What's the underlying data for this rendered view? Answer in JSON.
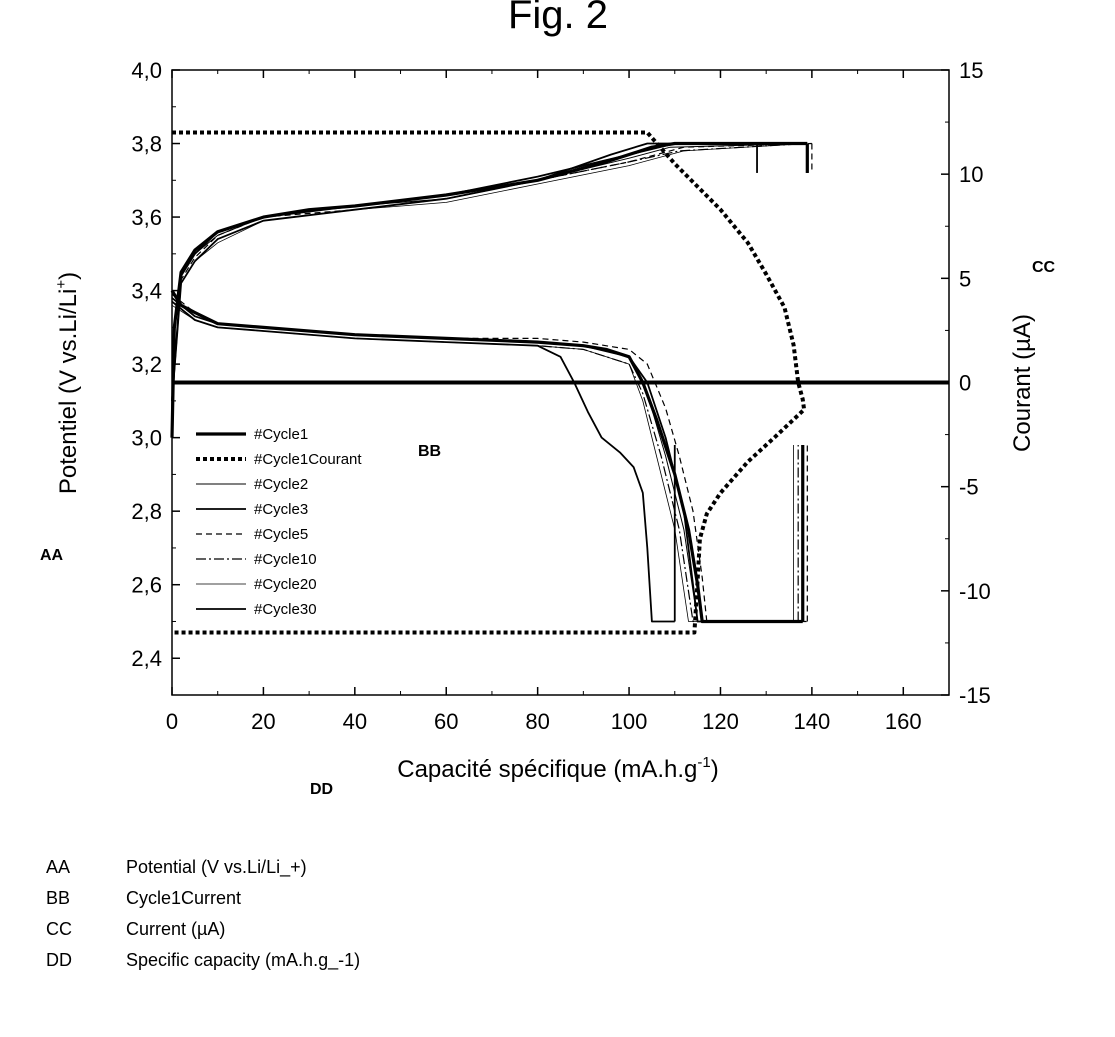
{
  "figure": {
    "title": "Fig. 2"
  },
  "annotations": {
    "aa": "AA",
    "bb": "BB",
    "cc": "CC",
    "dd": "DD"
  },
  "key": [
    {
      "code": "AA",
      "text": "Potential (V vs.Li/Li_+)"
    },
    {
      "code": "BB",
      "text": "Cycle1Current"
    },
    {
      "code": "CC",
      "text": "Current (µA)"
    },
    {
      "code": "DD",
      "text": "Specific capacity (mA.h.g_-1)"
    }
  ],
  "chart_data": {
    "type": "line",
    "title": "Fig. 2",
    "xlabel_main": "Capacité spécifique (mA.h.g",
    "xlabel_sup": "-1",
    "xlabel_end": ")",
    "ylabel_main": "Potentiel (V vs.Li/Li",
    "ylabel_sup": "+",
    "ylabel_end": ")",
    "y2label": "Courant (µA)",
    "xlim": [
      0,
      170
    ],
    "ylim": [
      2.3,
      4.0
    ],
    "y2lim": [
      -15,
      15
    ],
    "xticks": [
      "0",
      "20",
      "40",
      "60",
      "80",
      "100",
      "120",
      "140",
      "160"
    ],
    "yticks": [
      "2,4",
      "2,6",
      "2,8",
      "3,0",
      "3,2",
      "3,4",
      "3,6",
      "3,8",
      "4,0"
    ],
    "y2ticks": [
      "-15",
      "-10",
      "-5",
      "0",
      "5",
      "10",
      "15"
    ],
    "grid": false,
    "legend_position": "left",
    "series": [
      {
        "name": "#Cycle1",
        "axis": "left",
        "style": "thick",
        "charge": [
          [
            0,
            3.0
          ],
          [
            0.5,
            3.3
          ],
          [
            2,
            3.45
          ],
          [
            5,
            3.51
          ],
          [
            10,
            3.56
          ],
          [
            20,
            3.6
          ],
          [
            30,
            3.62
          ],
          [
            40,
            3.63
          ],
          [
            60,
            3.66
          ],
          [
            80,
            3.7
          ],
          [
            95,
            3.75
          ],
          [
            105,
            3.79
          ],
          [
            110,
            3.8
          ],
          [
            139,
            3.8
          ]
        ],
        "discharge": [
          [
            0,
            3.4
          ],
          [
            2,
            3.36
          ],
          [
            5,
            3.34
          ],
          [
            10,
            3.31
          ],
          [
            20,
            3.3
          ],
          [
            40,
            3.28
          ],
          [
            60,
            3.27
          ],
          [
            80,
            3.26
          ],
          [
            90,
            3.25
          ],
          [
            95,
            3.24
          ],
          [
            100,
            3.22
          ],
          [
            103,
            3.15
          ],
          [
            106,
            3.05
          ],
          [
            110,
            2.9
          ],
          [
            113,
            2.75
          ],
          [
            115,
            2.6
          ],
          [
            116,
            2.5
          ],
          [
            138,
            2.5
          ]
        ]
      },
      {
        "name": "#Cycle1Courant",
        "axis": "right",
        "style": "dotted",
        "points": [
          [
            0,
            12
          ],
          [
            104,
            12
          ],
          [
            110,
            10.5
          ],
          [
            120,
            8.3
          ],
          [
            126,
            6.7
          ],
          [
            130,
            5.2
          ],
          [
            134,
            3.6
          ],
          [
            136,
            1.8
          ],
          [
            137,
            0
          ],
          [
            138,
            -0.8
          ],
          [
            138.3,
            -1.3
          ],
          [
            132,
            -2.6
          ],
          [
            126,
            -3.8
          ],
          [
            120,
            -5.3
          ],
          [
            117,
            -6.3
          ],
          [
            115.5,
            -7.5
          ],
          [
            115,
            -9.5
          ],
          [
            114.3,
            -12
          ],
          [
            0,
            -12
          ]
        ]
      },
      {
        "name": "#Cycle2",
        "axis": "left",
        "style": "thin",
        "charge": [
          [
            0,
            3.1
          ],
          [
            2,
            3.44
          ],
          [
            5,
            3.5
          ],
          [
            10,
            3.55
          ],
          [
            20,
            3.6
          ],
          [
            40,
            3.63
          ],
          [
            60,
            3.65
          ],
          [
            80,
            3.7
          ],
          [
            100,
            3.76
          ],
          [
            109,
            3.79
          ],
          [
            139,
            3.8
          ]
        ],
        "discharge": [
          [
            0,
            3.38
          ],
          [
            5,
            3.33
          ],
          [
            10,
            3.31
          ],
          [
            20,
            3.3
          ],
          [
            40,
            3.28
          ],
          [
            60,
            3.27
          ],
          [
            80,
            3.26
          ],
          [
            90,
            3.25
          ],
          [
            100,
            3.22
          ],
          [
            104,
            3.12
          ],
          [
            108,
            2.95
          ],
          [
            112,
            2.75
          ],
          [
            115,
            2.5
          ],
          [
            138,
            2.5
          ]
        ]
      },
      {
        "name": "#Cycle3",
        "axis": "left",
        "style": "solid",
        "charge": [
          [
            0,
            3.1
          ],
          [
            2,
            3.44
          ],
          [
            5,
            3.5
          ],
          [
            10,
            3.56
          ],
          [
            20,
            3.6
          ],
          [
            40,
            3.63
          ],
          [
            60,
            3.66
          ],
          [
            80,
            3.71
          ],
          [
            100,
            3.77
          ],
          [
            110,
            3.8
          ],
          [
            139,
            3.8
          ]
        ],
        "discharge": [
          [
            0,
            3.38
          ],
          [
            5,
            3.33
          ],
          [
            10,
            3.31
          ],
          [
            20,
            3.3
          ],
          [
            40,
            3.28
          ],
          [
            60,
            3.27
          ],
          [
            80,
            3.26
          ],
          [
            90,
            3.25
          ],
          [
            100,
            3.22
          ],
          [
            104,
            3.15
          ],
          [
            108,
            3.0
          ],
          [
            112,
            2.8
          ],
          [
            115,
            2.5
          ],
          [
            138,
            2.5
          ]
        ]
      },
      {
        "name": "#Cycle5",
        "axis": "left",
        "style": "dashed",
        "charge": [
          [
            0,
            3.1
          ],
          [
            2,
            3.43
          ],
          [
            5,
            3.49
          ],
          [
            10,
            3.55
          ],
          [
            20,
            3.6
          ],
          [
            40,
            3.62
          ],
          [
            60,
            3.65
          ],
          [
            80,
            3.7
          ],
          [
            100,
            3.75
          ],
          [
            112,
            3.79
          ],
          [
            140,
            3.8
          ]
        ],
        "discharge": [
          [
            0,
            3.39
          ],
          [
            5,
            3.34
          ],
          [
            10,
            3.31
          ],
          [
            20,
            3.3
          ],
          [
            40,
            3.28
          ],
          [
            60,
            3.27
          ],
          [
            80,
            3.27
          ],
          [
            90,
            3.26
          ],
          [
            100,
            3.24
          ],
          [
            104,
            3.2
          ],
          [
            108,
            3.08
          ],
          [
            111,
            2.95
          ],
          [
            114,
            2.8
          ],
          [
            116,
            2.62
          ],
          [
            117,
            2.5
          ],
          [
            139,
            2.5
          ]
        ]
      },
      {
        "name": "#Cycle10",
        "axis": "left",
        "style": "dashdot",
        "charge": [
          [
            0,
            3.1
          ],
          [
            2,
            3.42
          ],
          [
            5,
            3.48
          ],
          [
            10,
            3.54
          ],
          [
            20,
            3.59
          ],
          [
            40,
            3.62
          ],
          [
            60,
            3.65
          ],
          [
            80,
            3.7
          ],
          [
            100,
            3.75
          ],
          [
            111,
            3.78
          ],
          [
            139,
            3.8
          ]
        ],
        "discharge": [
          [
            0,
            3.37
          ],
          [
            5,
            3.32
          ],
          [
            10,
            3.3
          ],
          [
            20,
            3.29
          ],
          [
            40,
            3.27
          ],
          [
            60,
            3.26
          ],
          [
            80,
            3.25
          ],
          [
            90,
            3.24
          ],
          [
            100,
            3.2
          ],
          [
            103,
            3.12
          ],
          [
            107,
            2.95
          ],
          [
            111,
            2.75
          ],
          [
            114,
            2.5
          ],
          [
            137,
            2.5
          ]
        ]
      },
      {
        "name": "#Cycle20",
        "axis": "left",
        "style": "hair",
        "charge": [
          [
            0,
            3.1
          ],
          [
            2,
            3.42
          ],
          [
            5,
            3.48
          ],
          [
            10,
            3.53
          ],
          [
            20,
            3.59
          ],
          [
            40,
            3.62
          ],
          [
            60,
            3.64
          ],
          [
            80,
            3.69
          ],
          [
            100,
            3.74
          ],
          [
            112,
            3.78
          ],
          [
            139,
            3.8
          ]
        ],
        "discharge": [
          [
            0,
            3.36
          ],
          [
            5,
            3.32
          ],
          [
            10,
            3.3
          ],
          [
            20,
            3.29
          ],
          [
            40,
            3.27
          ],
          [
            60,
            3.26
          ],
          [
            80,
            3.25
          ],
          [
            90,
            3.24
          ],
          [
            100,
            3.2
          ],
          [
            103,
            3.1
          ],
          [
            106,
            2.95
          ],
          [
            110,
            2.75
          ],
          [
            113,
            2.5
          ],
          [
            136,
            2.5
          ]
        ]
      },
      {
        "name": "#Cycle30",
        "axis": "left",
        "style": "solid",
        "charge": [
          [
            0,
            3.1
          ],
          [
            2,
            3.42
          ],
          [
            5,
            3.48
          ],
          [
            10,
            3.54
          ],
          [
            20,
            3.59
          ],
          [
            40,
            3.62
          ],
          [
            60,
            3.65
          ],
          [
            80,
            3.7
          ],
          [
            96,
            3.77
          ],
          [
            104,
            3.8
          ],
          [
            128,
            3.8
          ]
        ],
        "discharge": [
          [
            0,
            3.37
          ],
          [
            5,
            3.32
          ],
          [
            10,
            3.3
          ],
          [
            20,
            3.29
          ],
          [
            40,
            3.27
          ],
          [
            60,
            3.26
          ],
          [
            80,
            3.25
          ],
          [
            85,
            3.22
          ],
          [
            88,
            3.15
          ],
          [
            91,
            3.07
          ],
          [
            94,
            3.0
          ],
          [
            98,
            2.96
          ],
          [
            101,
            2.92
          ],
          [
            103,
            2.85
          ],
          [
            104,
            2.7
          ],
          [
            105,
            2.5
          ],
          [
            110,
            2.5
          ]
        ]
      }
    ]
  }
}
